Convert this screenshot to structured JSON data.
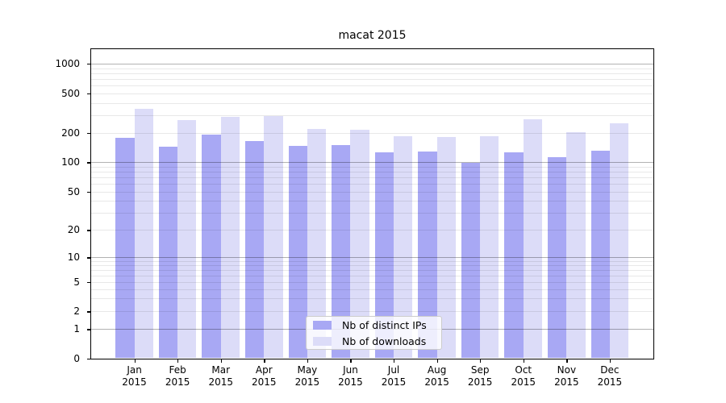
{
  "chart_data": {
    "type": "bar",
    "title": "macat 2015",
    "categories": [
      "Jan",
      "Feb",
      "Mar",
      "Apr",
      "May",
      "Jun",
      "Jul",
      "Aug",
      "Sep",
      "Oct",
      "Nov",
      "Dec"
    ],
    "category_year": "2015",
    "series": [
      {
        "name": "Nb of distinct IPs",
        "color": "#a8a8f4",
        "values": [
          176,
          143,
          192,
          164,
          147,
          149,
          126,
          128,
          98,
          126,
          113,
          132
        ]
      },
      {
        "name": "Nb of downloads",
        "color": "#dcdcf8",
        "values": [
          350,
          266,
          290,
          293,
          218,
          214,
          184,
          181,
          183,
          270,
          203,
          250
        ]
      }
    ],
    "xlabel": "",
    "ylabel": "",
    "yscale": "symlog",
    "yticks": [
      0,
      1,
      2,
      5,
      10,
      20,
      50,
      100,
      200,
      500,
      1000
    ],
    "ylim": [
      0,
      1100
    ],
    "grid": true,
    "grid_minor": true,
    "legend_position": "lower-center"
  }
}
